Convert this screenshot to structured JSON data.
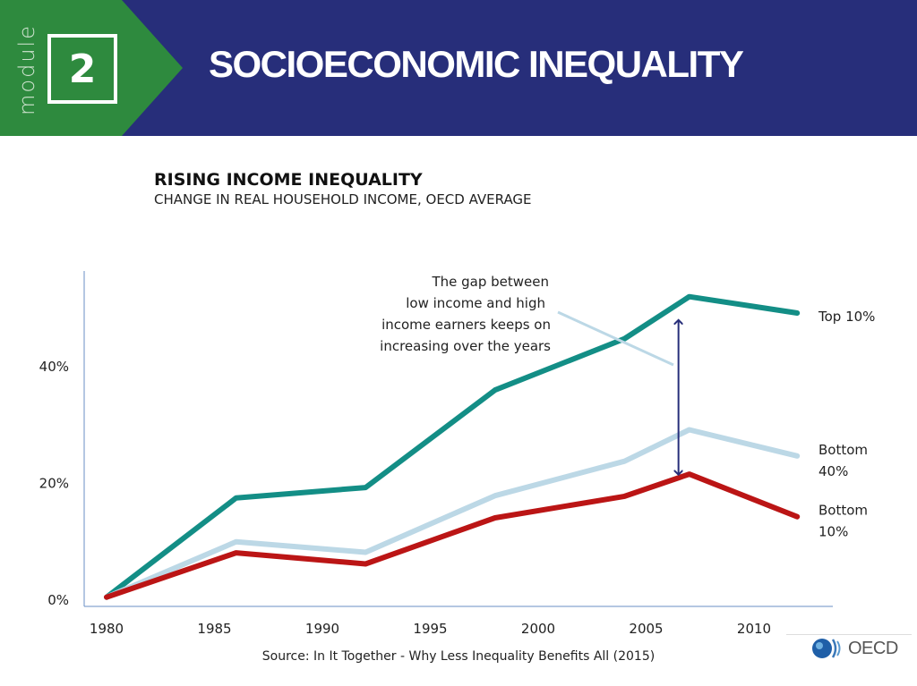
{
  "header": {
    "module_word": "module",
    "module_number": "2",
    "title": "SOCIOECONOMIC INEQUALITY",
    "colors": {
      "background": "#272e7a",
      "green": "#2e8a3e"
    }
  },
  "chart_data": {
    "type": "line",
    "title": "RISING INCOME INEQUALITY",
    "subtitle": "CHANGE IN REAL HOUSEHOLD INCOME, OECD AVERAGE",
    "xlabel": "",
    "ylabel": "",
    "xlim": [
      1979,
      2014
    ],
    "ylim": [
      0,
      55
    ],
    "x_ticks": [
      1980,
      1985,
      1990,
      1995,
      2000,
      2005,
      2010
    ],
    "y_ticks": [
      {
        "value": 0,
        "label": "0%"
      },
      {
        "value": 20,
        "label": "20%"
      },
      {
        "value": 40,
        "label": "40%"
      }
    ],
    "grid": false,
    "series": [
      {
        "name": "Top 10%",
        "color": "#138e86",
        "x": [
          1980,
          1986,
          1992,
          1998,
          2004,
          2007,
          2012
        ],
        "values": [
          0.5,
          17.5,
          19.3,
          36.0,
          44.8,
          52.0,
          49.2
        ]
      },
      {
        "name": "Bottom 40%",
        "color": "#bcd8e6",
        "x": [
          1980,
          1986,
          1992,
          1998,
          2004,
          2007,
          2012
        ],
        "values": [
          0.5,
          10.0,
          8.2,
          17.9,
          23.8,
          29.2,
          24.7
        ]
      },
      {
        "name": "Bottom 10%",
        "color": "#bb1515",
        "x": [
          1980,
          1986,
          1992,
          1998,
          2004,
          2007,
          2012
        ],
        "values": [
          0.5,
          8.1,
          6.2,
          14.1,
          17.8,
          21.6,
          14.3
        ]
      }
    ],
    "annotation": {
      "lines": [
        "The gap between",
        "low income and high",
        "income earners keeps on",
        "increasing over the years"
      ],
      "arrow_x": 2006.5,
      "arrow_y": [
        21.5,
        48.0
      ]
    },
    "source": "Source: In It Together - Why Less Inequality Benefits All (2015)"
  },
  "logo": {
    "text": "OECD"
  }
}
